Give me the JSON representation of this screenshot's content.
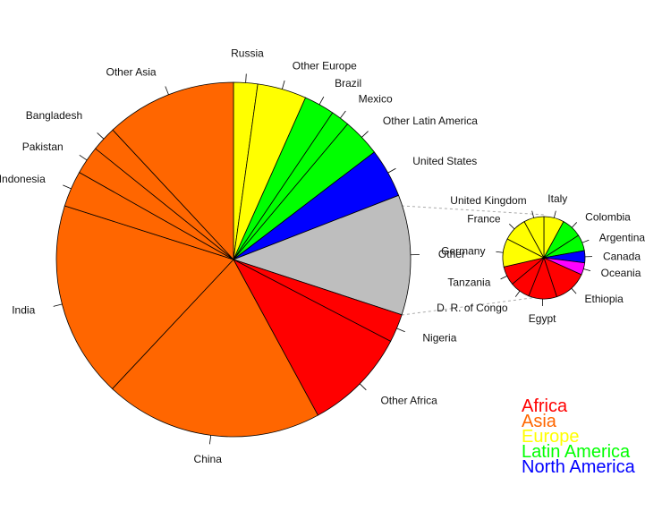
{
  "chart_data": [
    {
      "type": "pie",
      "slices": [
        {
          "label": "Russia",
          "value": 2.2,
          "group": "Europe"
        },
        {
          "label": "Other Europe",
          "value": 4.5,
          "group": "Europe"
        },
        {
          "label": "Brazil",
          "value": 2.8,
          "group": "Latin America"
        },
        {
          "label": "Mexico",
          "value": 1.7,
          "group": "Latin America"
        },
        {
          "label": "Other Latin America",
          "value": 3.5,
          "group": "Latin America"
        },
        {
          "label": "United States",
          "value": 4.5,
          "group": "North America"
        },
        {
          "label": "Other",
          "value": 11.0,
          "group": "Other"
        },
        {
          "label": "Nigeria",
          "value": 2.6,
          "group": "Africa"
        },
        {
          "label": "Other Africa",
          "value": 9.5,
          "group": "Africa"
        },
        {
          "label": "China",
          "value": 20.0,
          "group": "Asia"
        },
        {
          "label": "India",
          "value": 18.0,
          "group": "Asia"
        },
        {
          "label": "Indonesia",
          "value": 3.3,
          "group": "Asia"
        },
        {
          "label": "Pakistan",
          "value": 2.6,
          "group": "Asia"
        },
        {
          "label": "Bangladesh",
          "value": 2.3,
          "group": "Asia"
        },
        {
          "label": "Other Asia",
          "value": 12.0,
          "group": "Asia"
        }
      ]
    },
    {
      "type": "pie",
      "slices": [
        {
          "label": "Italy",
          "value": 5.0,
          "group": "Europe"
        },
        {
          "label": "Colombia",
          "value": 5.0,
          "group": "Latin America"
        },
        {
          "label": "Argentina",
          "value": 4.0,
          "group": "Latin America"
        },
        {
          "label": "Canada",
          "value": 3.0,
          "group": "North America"
        },
        {
          "label": "Oceania",
          "value": 3.0,
          "group": "Oceania"
        },
        {
          "label": "Ethiopia",
          "value": 8.3,
          "group": "Africa"
        },
        {
          "label": "Egypt",
          "value": 7.0,
          "group": "Africa"
        },
        {
          "label": "D. R. of Congo",
          "value": 5.0,
          "group": "Africa"
        },
        {
          "label": "Tanzania",
          "value": 4.7,
          "group": "Africa"
        },
        {
          "label": "Germany",
          "value": 7.0,
          "group": "Europe"
        },
        {
          "label": "France",
          "value": 6.0,
          "group": "Europe"
        },
        {
          "label": "United Kingdom",
          "value": 5.0,
          "group": "Europe"
        }
      ]
    }
  ],
  "legend": [
    {
      "label": "Africa",
      "color": "#ff0000"
    },
    {
      "label": "Asia",
      "color": "#ff6600"
    },
    {
      "label": "Europe",
      "color": "#ffff00"
    },
    {
      "label": "Latin America",
      "color": "#00ff00"
    },
    {
      "label": "North America",
      "color": "#0000ff"
    }
  ],
  "colors": {
    "Africa": "#ff0000",
    "Asia": "#ff6600",
    "Europe": "#ffff00",
    "Latin America": "#00ff00",
    "North America": "#0000ff",
    "Oceania": "#ff00ff",
    "Other": "#bebebe"
  }
}
